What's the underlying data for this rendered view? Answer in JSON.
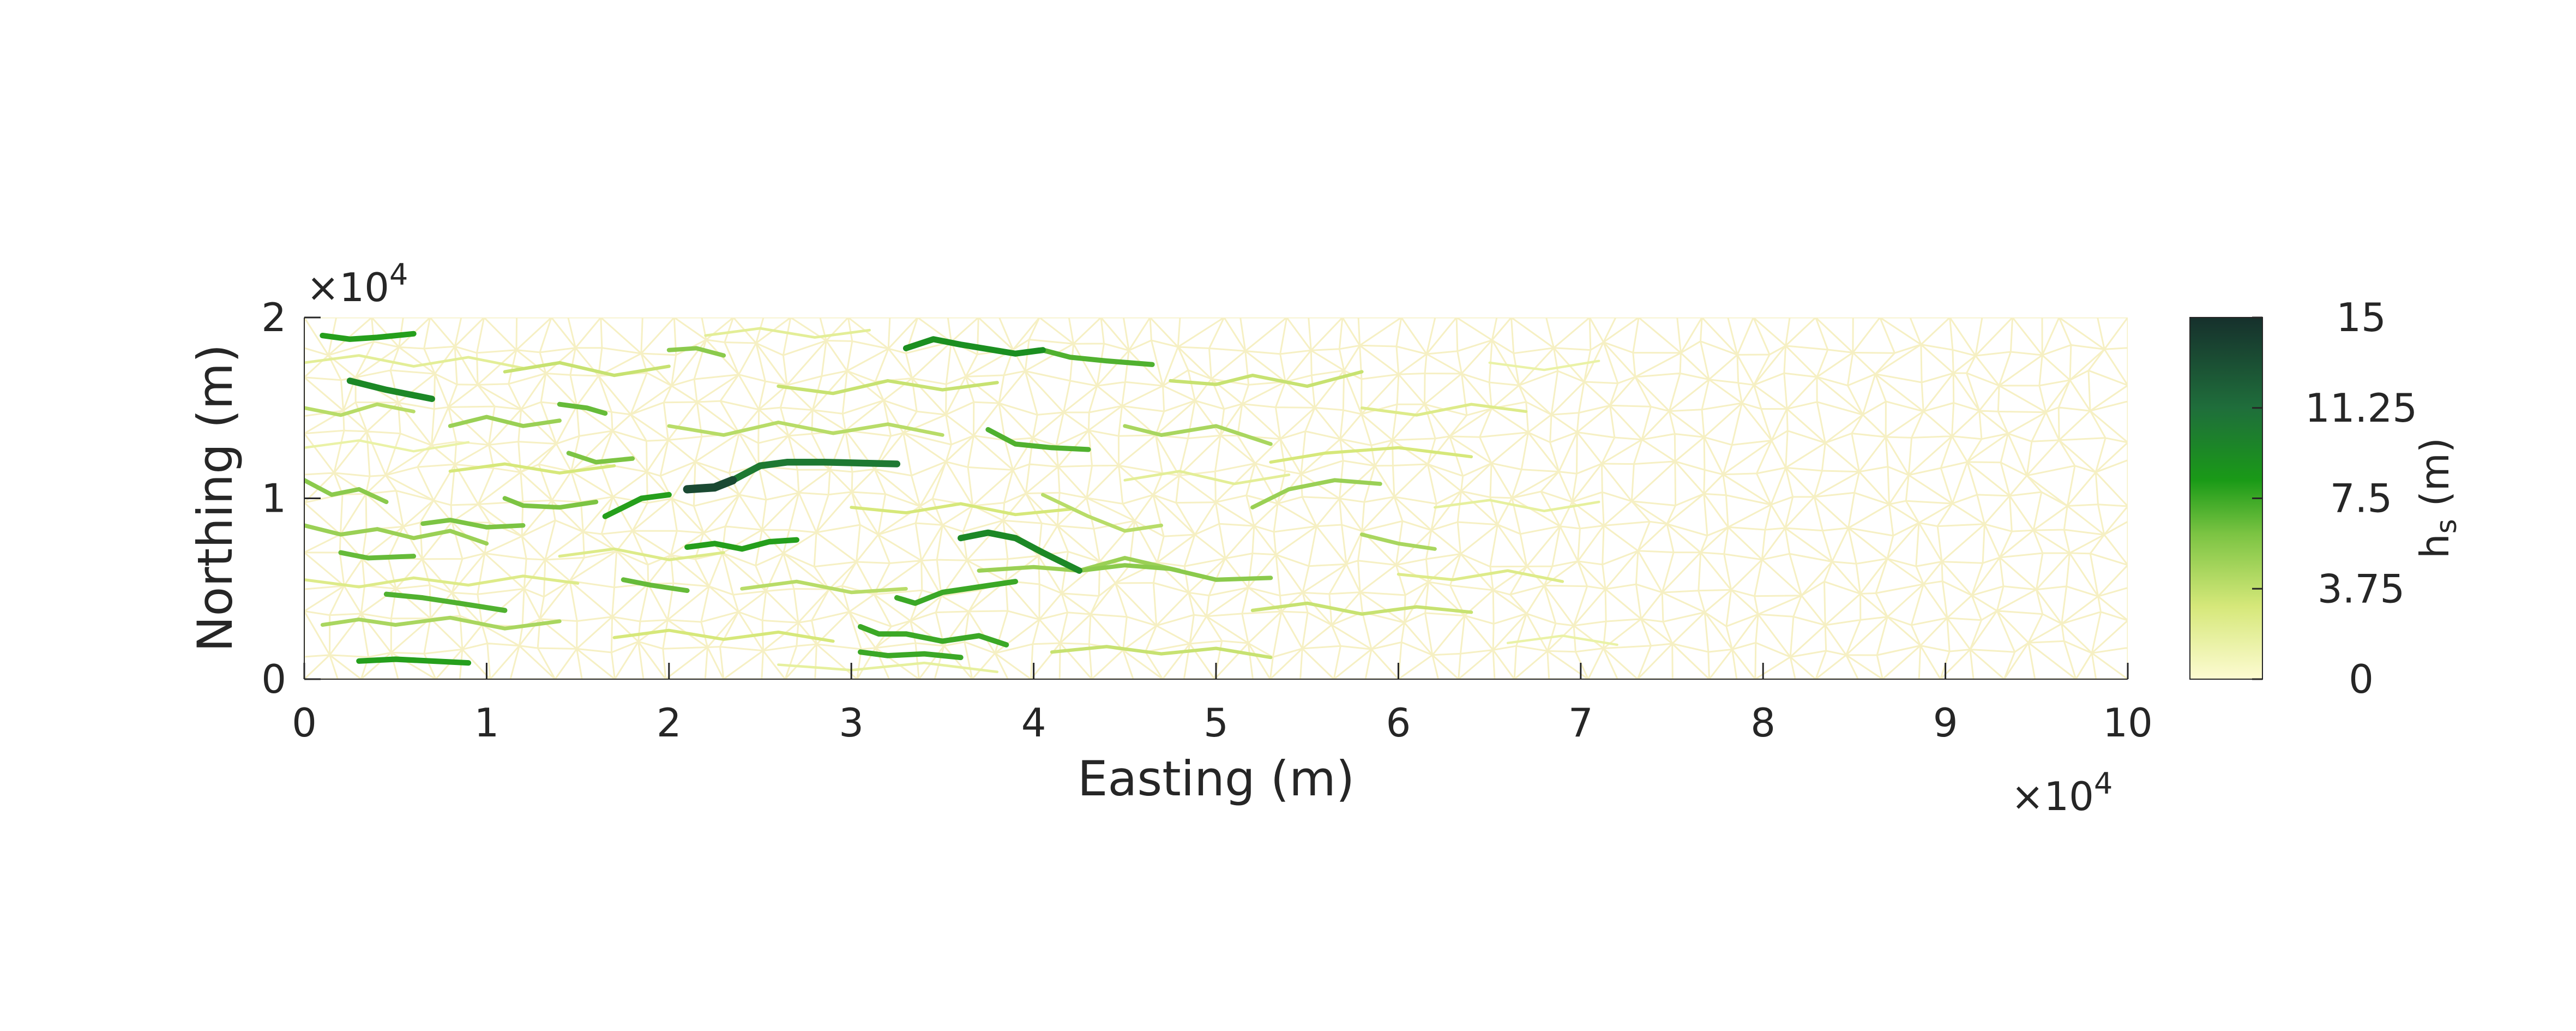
{
  "chart_data": {
    "type": "heatmap",
    "title": "",
    "xlabel": "Easting (m)",
    "ylabel": "Northing (m)",
    "xlim": [
      0,
      100000
    ],
    "ylim": [
      0,
      20000
    ],
    "x_ticks": [
      "0",
      "1",
      "2",
      "3",
      "4",
      "5",
      "6",
      "7",
      "8",
      "9",
      "10"
    ],
    "y_ticks": [
      "0",
      "1",
      "2"
    ],
    "x_exponent": {
      "base": "×10",
      "power": "4"
    },
    "y_exponent": {
      "base": "×10",
      "power": "4"
    },
    "grid": false,
    "colorbar": {
      "label_main": "h",
      "label_sub": "s",
      "label_unit": " (m)",
      "range": [
        0,
        15
      ],
      "ticks": [
        "15",
        "11.25",
        "7.5",
        "3.75",
        "0"
      ],
      "colors": [
        "#fdfbd2",
        "#d6e87a",
        "#7cc443",
        "#1a9a17",
        "#1f6e3b",
        "#16302c"
      ]
    },
    "channels": [
      {
        "value": 13.5,
        "points": [
          [
            21000,
            10500
          ],
          [
            22500,
            10600
          ],
          [
            23500,
            11000
          ]
        ]
      },
      {
        "value": 10.5,
        "points": [
          [
            23500,
            11000
          ],
          [
            25000,
            11800
          ],
          [
            26500,
            12000
          ],
          [
            28500,
            12000
          ],
          [
            32500,
            11900
          ]
        ]
      },
      {
        "value": 9.5,
        "points": [
          [
            36000,
            7800
          ],
          [
            37500,
            8100
          ],
          [
            39000,
            7800
          ],
          [
            40500,
            7000
          ],
          [
            42500,
            6000
          ]
        ]
      },
      {
        "value": 9.5,
        "points": [
          [
            2500,
            16500
          ],
          [
            4500,
            16000
          ],
          [
            7000,
            15500
          ]
        ]
      },
      {
        "value": 9.0,
        "points": [
          [
            33000,
            18300
          ],
          [
            34500,
            18800
          ],
          [
            36000,
            18500
          ],
          [
            39000,
            18000
          ],
          [
            40500,
            18200
          ]
        ]
      },
      {
        "value": 8.0,
        "points": [
          [
            1000,
            19000
          ],
          [
            2500,
            18800
          ],
          [
            4000,
            18900
          ],
          [
            6000,
            19100
          ]
        ]
      },
      {
        "value": 8.0,
        "points": [
          [
            16500,
            9000
          ],
          [
            17500,
            9500
          ],
          [
            18500,
            10000
          ],
          [
            20000,
            10200
          ]
        ]
      },
      {
        "value": 8.0,
        "points": [
          [
            21000,
            7300
          ],
          [
            22500,
            7500
          ],
          [
            24000,
            7200
          ],
          [
            25500,
            7600
          ],
          [
            27000,
            7700
          ]
        ]
      },
      {
        "value": 8.0,
        "points": [
          [
            3000,
            1000
          ],
          [
            5000,
            1100
          ],
          [
            7000,
            1000
          ],
          [
            9000,
            900
          ]
        ]
      },
      {
        "value": 7.5,
        "points": [
          [
            30500,
            1500
          ],
          [
            32000,
            1300
          ],
          [
            34000,
            1400
          ],
          [
            36000,
            1200
          ]
        ]
      },
      {
        "value": 7.5,
        "points": [
          [
            30500,
            2900
          ],
          [
            31500,
            2500
          ],
          [
            33000,
            2500
          ],
          [
            35000,
            2100
          ],
          [
            37000,
            2400
          ],
          [
            38500,
            1900
          ]
        ]
      },
      {
        "value": 7.5,
        "points": [
          [
            32500,
            4500
          ],
          [
            33500,
            4200
          ],
          [
            35000,
            4800
          ],
          [
            37000,
            5100
          ],
          [
            39000,
            5400
          ]
        ]
      },
      {
        "value": 7.0,
        "points": [
          [
            40500,
            18200
          ],
          [
            42000,
            17800
          ],
          [
            44000,
            17600
          ],
          [
            46500,
            17400
          ]
        ]
      },
      {
        "value": 7.0,
        "points": [
          [
            37500,
            13800
          ],
          [
            39000,
            13000
          ],
          [
            41000,
            12800
          ],
          [
            43000,
            12700
          ]
        ]
      },
      {
        "value": 7.0,
        "points": [
          [
            4500,
            4700
          ],
          [
            6500,
            4500
          ],
          [
            8500,
            4200
          ],
          [
            11000,
            3800
          ]
        ]
      },
      {
        "value": 6.5,
        "points": [
          [
            17500,
            5500
          ],
          [
            19000,
            5200
          ],
          [
            21000,
            4900
          ]
        ]
      },
      {
        "value": 6.5,
        "points": [
          [
            14000,
            15200
          ],
          [
            15500,
            15000
          ],
          [
            16500,
            14700
          ]
        ]
      },
      {
        "value": 6.5,
        "points": [
          [
            2000,
            7000
          ],
          [
            3500,
            6700
          ],
          [
            6000,
            6800
          ]
        ]
      },
      {
        "value": 6.0,
        "points": [
          [
            11000,
            10000
          ],
          [
            12000,
            9600
          ],
          [
            14000,
            9500
          ],
          [
            16000,
            9800
          ]
        ]
      },
      {
        "value": 6.0,
        "points": [
          [
            6500,
            8600
          ],
          [
            8000,
            8800
          ],
          [
            10000,
            8400
          ],
          [
            12000,
            8500
          ]
        ]
      },
      {
        "value": 6.0,
        "points": [
          [
            14500,
            12500
          ],
          [
            16000,
            12000
          ],
          [
            18000,
            12200
          ]
        ]
      },
      {
        "value": 5.5,
        "points": [
          [
            0,
            11000
          ],
          [
            1500,
            10200
          ],
          [
            3000,
            10500
          ],
          [
            4500,
            9800
          ]
        ]
      },
      {
        "value": 5.5,
        "points": [
          [
            20000,
            18200
          ],
          [
            21500,
            18300
          ],
          [
            23000,
            17900
          ]
        ]
      },
      {
        "value": 5.5,
        "points": [
          [
            42500,
            6000
          ],
          [
            45000,
            6300
          ],
          [
            47500,
            6100
          ],
          [
            50000,
            5500
          ],
          [
            53000,
            5600
          ]
        ]
      },
      {
        "value": 5.0,
        "points": [
          [
            52000,
            9500
          ],
          [
            54000,
            10500
          ],
          [
            56500,
            11000
          ],
          [
            59000,
            10800
          ]
        ]
      },
      {
        "value": 5.0,
        "points": [
          [
            37000,
            6000
          ],
          [
            40000,
            6200
          ],
          [
            42500,
            6000
          ],
          [
            45000,
            6700
          ],
          [
            48000,
            6000
          ]
        ]
      },
      {
        "value": 5.0,
        "points": [
          [
            8000,
            14000
          ],
          [
            10000,
            14500
          ],
          [
            12000,
            14000
          ],
          [
            14000,
            14300
          ]
        ]
      },
      {
        "value": 5.0,
        "points": [
          [
            0,
            8500
          ],
          [
            2000,
            8000
          ],
          [
            4000,
            8300
          ],
          [
            6000,
            7800
          ],
          [
            8000,
            8200
          ],
          [
            10000,
            7500
          ]
        ]
      },
      {
        "value": 4.5,
        "points": [
          [
            45000,
            14000
          ],
          [
            47000,
            13500
          ],
          [
            50000,
            14000
          ],
          [
            53000,
            13000
          ]
        ]
      },
      {
        "value": 4.5,
        "points": [
          [
            58000,
            8000
          ],
          [
            60000,
            7500
          ],
          [
            62000,
            7200
          ]
        ]
      },
      {
        "value": 4.5,
        "points": [
          [
            1000,
            3000
          ],
          [
            3000,
            3300
          ],
          [
            5000,
            3000
          ],
          [
            8000,
            3400
          ],
          [
            11000,
            2800
          ],
          [
            14000,
            3200
          ]
        ]
      },
      {
        "value": 4.0,
        "points": [
          [
            20000,
            14000
          ],
          [
            23000,
            13500
          ],
          [
            26000,
            14200
          ],
          [
            29000,
            13600
          ],
          [
            32000,
            14100
          ],
          [
            35000,
            13500
          ]
        ]
      },
      {
        "value": 4.0,
        "points": [
          [
            24000,
            5000
          ],
          [
            27000,
            5400
          ],
          [
            30000,
            4800
          ],
          [
            33000,
            5000
          ]
        ]
      },
      {
        "value": 4.0,
        "points": [
          [
            40500,
            10200
          ],
          [
            43000,
            9000
          ],
          [
            45000,
            8200
          ],
          [
            47000,
            8500
          ]
        ]
      },
      {
        "value": 4.0,
        "points": [
          [
            0,
            15000
          ],
          [
            2000,
            14600
          ],
          [
            4000,
            15200
          ],
          [
            6000,
            14800
          ]
        ]
      },
      {
        "value": 3.5,
        "points": [
          [
            47500,
            16500
          ],
          [
            50000,
            16300
          ],
          [
            52000,
            16800
          ],
          [
            55000,
            16200
          ],
          [
            58000,
            17000
          ]
        ]
      },
      {
        "value": 3.5,
        "points": [
          [
            41000,
            1500
          ],
          [
            44000,
            1800
          ],
          [
            47000,
            1400
          ],
          [
            50000,
            1700
          ],
          [
            53000,
            1200
          ]
        ]
      },
      {
        "value": 3.5,
        "points": [
          [
            52000,
            3800
          ],
          [
            55000,
            4200
          ],
          [
            58000,
            3600
          ],
          [
            61000,
            4000
          ],
          [
            64000,
            3700
          ]
        ]
      },
      {
        "value": 3.5,
        "points": [
          [
            26000,
            16200
          ],
          [
            29000,
            15800
          ],
          [
            32000,
            16500
          ],
          [
            35000,
            16000
          ],
          [
            38000,
            16400
          ]
        ]
      },
      {
        "value": 3.5,
        "points": [
          [
            11000,
            17000
          ],
          [
            14000,
            17500
          ],
          [
            17000,
            16800
          ],
          [
            20000,
            17300
          ]
        ]
      },
      {
        "value": 3.0,
        "points": [
          [
            53000,
            12000
          ],
          [
            56000,
            12500
          ],
          [
            60000,
            12800
          ],
          [
            64000,
            12300
          ]
        ]
      },
      {
        "value": 3.0,
        "points": [
          [
            17000,
            2300
          ],
          [
            20000,
            2700
          ],
          [
            23000,
            2200
          ],
          [
            26000,
            2600
          ],
          [
            29000,
            2100
          ]
        ]
      },
      {
        "value": 3.0,
        "points": [
          [
            8000,
            11500
          ],
          [
            11000,
            11900
          ],
          [
            14000,
            11400
          ],
          [
            17000,
            11800
          ]
        ]
      },
      {
        "value": 3.0,
        "points": [
          [
            30000,
            9500
          ],
          [
            33000,
            9200
          ],
          [
            36000,
            9700
          ],
          [
            39000,
            9100
          ],
          [
            42000,
            9400
          ]
        ]
      },
      {
        "value": 2.5,
        "points": [
          [
            58000,
            15000
          ],
          [
            61000,
            14600
          ],
          [
            64000,
            15200
          ],
          [
            67000,
            14800
          ]
        ]
      },
      {
        "value": 2.5,
        "points": [
          [
            60000,
            5800
          ],
          [
            63000,
            5500
          ],
          [
            66000,
            6000
          ],
          [
            69000,
            5400
          ]
        ]
      },
      {
        "value": 2.5,
        "points": [
          [
            0,
            5500
          ],
          [
            3000,
            5100
          ],
          [
            6000,
            5600
          ],
          [
            9000,
            5200
          ],
          [
            12000,
            5700
          ],
          [
            15000,
            5300
          ]
        ]
      },
      {
        "value": 2.5,
        "points": [
          [
            14000,
            6800
          ],
          [
            17000,
            7200
          ],
          [
            20000,
            6600
          ],
          [
            23000,
            7000
          ]
        ]
      },
      {
        "value": 2.0,
        "points": [
          [
            0,
            17500
          ],
          [
            3000,
            17900
          ],
          [
            6000,
            17300
          ],
          [
            9000,
            17800
          ],
          [
            12000,
            17200
          ]
        ]
      },
      {
        "value": 2.0,
        "points": [
          [
            22000,
            19000
          ],
          [
            25000,
            19400
          ],
          [
            28000,
            18900
          ],
          [
            31000,
            19300
          ]
        ]
      },
      {
        "value": 2.0,
        "points": [
          [
            45000,
            11000
          ],
          [
            48000,
            11500
          ],
          [
            51000,
            10800
          ],
          [
            54000,
            11300
          ]
        ]
      },
      {
        "value": 1.8,
        "points": [
          [
            62000,
            9500
          ],
          [
            65000,
            9900
          ],
          [
            68000,
            9300
          ],
          [
            71000,
            9800
          ]
        ]
      },
      {
        "value": 1.8,
        "points": [
          [
            26000,
            800
          ],
          [
            30000,
            500
          ],
          [
            34000,
            900
          ],
          [
            38000,
            400
          ]
        ]
      },
      {
        "value": 1.5,
        "points": [
          [
            65000,
            17500
          ],
          [
            68000,
            17100
          ],
          [
            71000,
            17600
          ]
        ]
      },
      {
        "value": 1.5,
        "points": [
          [
            0,
            12800
          ],
          [
            3000,
            13200
          ],
          [
            6000,
            12600
          ],
          [
            9000,
            13100
          ]
        ]
      },
      {
        "value": 1.5,
        "points": [
          [
            66000,
            2000
          ],
          [
            69000,
            2400
          ],
          [
            72000,
            1900
          ]
        ]
      }
    ]
  }
}
